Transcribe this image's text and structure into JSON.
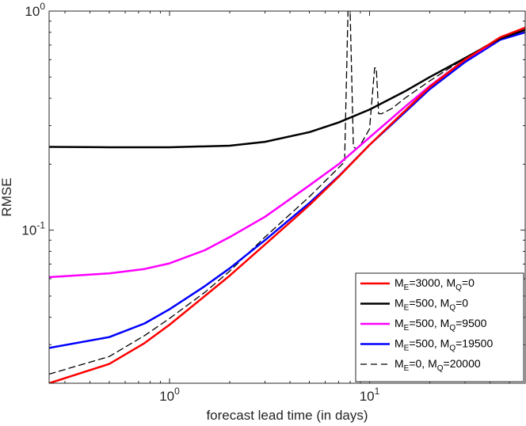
{
  "chart_data": {
    "type": "line",
    "title": "",
    "xlabel": "forecast lead time (in days)",
    "ylabel": "RMSE",
    "xscale": "log",
    "yscale": "log",
    "xlim": [
      0.25,
      60
    ],
    "ylim": [
      0.02,
      1.0
    ],
    "grid": false,
    "legend_position": "bottom-right",
    "x_ticks": [
      {
        "value": 1,
        "base": "10",
        "exp": "0"
      },
      {
        "value": 10,
        "base": "10",
        "exp": "1"
      }
    ],
    "y_ticks": [
      {
        "value": 0.1,
        "base": "10",
        "exp": "-1"
      },
      {
        "value": 1,
        "base": "10",
        "exp": "0"
      }
    ],
    "series": [
      {
        "name": "M_E=3000, M_Q=0",
        "label": {
          "a": "M",
          "a_sub": "E",
          "a_val": "=3000, ",
          "b": "M",
          "b_sub": "Q",
          "b_val": "=0"
        },
        "color": "#ff0000",
        "style": "solid",
        "width": 2.5,
        "x": [
          0.25,
          0.5,
          0.75,
          1,
          1.5,
          2,
          3,
          5,
          7,
          10,
          15,
          20,
          30,
          45,
          60
        ],
        "y": [
          0.02,
          0.0245,
          0.0305,
          0.037,
          0.05,
          0.062,
          0.086,
          0.13,
          0.175,
          0.245,
          0.35,
          0.45,
          0.6,
          0.76,
          0.84
        ]
      },
      {
        "name": "M_E=500, M_Q=0",
        "label": {
          "a": "M",
          "a_sub": "E",
          "a_val": "=500, ",
          "b": "M",
          "b_sub": "Q",
          "b_val": "=0"
        },
        "color": "#000000",
        "style": "solid",
        "width": 2.5,
        "x": [
          0.25,
          0.5,
          1,
          2,
          3,
          5,
          7,
          10,
          15,
          20,
          30,
          45,
          60
        ],
        "y": [
          0.24,
          0.239,
          0.239,
          0.243,
          0.253,
          0.28,
          0.31,
          0.355,
          0.43,
          0.5,
          0.61,
          0.75,
          0.82
        ]
      },
      {
        "name": "M_E=500, M_Q=9500",
        "label": {
          "a": "M",
          "a_sub": "E",
          "a_val": "=500, ",
          "b": "M",
          "b_sub": "Q",
          "b_val": "=9500"
        },
        "color": "#ff00ff",
        "style": "solid",
        "width": 2.5,
        "x": [
          0.25,
          0.5,
          0.75,
          1,
          1.5,
          2,
          3,
          5,
          7,
          10,
          15,
          20,
          30,
          45,
          60
        ],
        "y": [
          0.061,
          0.0635,
          0.0665,
          0.0705,
          0.081,
          0.093,
          0.115,
          0.16,
          0.2,
          0.265,
          0.365,
          0.455,
          0.6,
          0.75,
          0.82
        ]
      },
      {
        "name": "M_E=500, M_Q=19500",
        "label": {
          "a": "M",
          "a_sub": "E",
          "a_val": "=500, ",
          "b": "M",
          "b_sub": "Q",
          "b_val": "=19500"
        },
        "color": "#0000ff",
        "style": "solid",
        "width": 2.5,
        "x": [
          0.25,
          0.5,
          0.75,
          1,
          1.5,
          2,
          3,
          5,
          7,
          10,
          15,
          20,
          30,
          45,
          60
        ],
        "y": [
          0.029,
          0.0325,
          0.0375,
          0.0435,
          0.0555,
          0.067,
          0.09,
          0.133,
          0.176,
          0.245,
          0.345,
          0.44,
          0.585,
          0.74,
          0.8
        ]
      },
      {
        "name": "M_E=0, M_Q=20000",
        "label": {
          "a": "M",
          "a_sub": "E",
          "a_val": "=0, ",
          "b": "M",
          "b_sub": "Q",
          "b_val": "=20000"
        },
        "color": "#000000",
        "style": "dashed",
        "width": 1.3,
        "x": [
          0.25,
          0.5,
          0.75,
          1,
          1.5,
          2,
          3,
          5,
          7.5,
          7.8,
          8.0,
          8.3,
          8.6,
          9,
          10,
          10.6,
          10.8,
          11.1,
          11.5,
          13,
          15,
          20,
          30,
          45,
          60
        ],
        "y": [
          0.022,
          0.0265,
          0.033,
          0.0395,
          0.052,
          0.065,
          0.093,
          0.142,
          0.205,
          1.0,
          1.0,
          0.24,
          0.235,
          0.245,
          0.29,
          0.55,
          0.55,
          0.34,
          0.34,
          0.36,
          0.4,
          0.48,
          0.61,
          0.76,
          0.84
        ]
      }
    ]
  }
}
